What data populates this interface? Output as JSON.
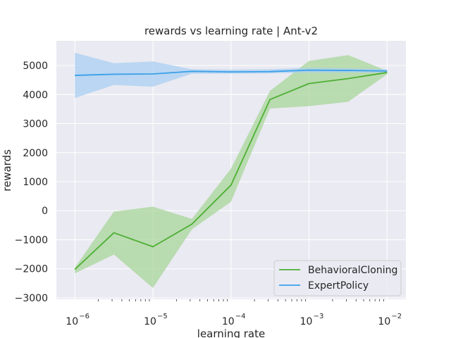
{
  "chart_data": {
    "type": "line",
    "title": "rewards vs learning rate | Ant-v2",
    "xlabel": "learning rate",
    "ylabel": "rewards",
    "xscale": "log",
    "xlim": [
      5.8e-07,
      0.0174
    ],
    "ylim": [
      -3050,
      5850
    ],
    "x": [
      1e-06,
      3.1623e-06,
      1e-05,
      3.1623e-05,
      0.0001,
      0.00031623,
      0.001,
      0.0031623,
      0.01
    ],
    "x_ticks": [
      {
        "value": 1e-06,
        "base": "10",
        "exp": "−6"
      },
      {
        "value": 1e-05,
        "base": "10",
        "exp": "−5"
      },
      {
        "value": 0.0001,
        "base": "10",
        "exp": "−4"
      },
      {
        "value": 0.001,
        "base": "10",
        "exp": "−3"
      },
      {
        "value": 0.01,
        "base": "10",
        "exp": "−2"
      }
    ],
    "y_ticks": [
      -3000,
      -2000,
      -1000,
      0,
      1000,
      2000,
      3000,
      4000,
      5000
    ],
    "y_tick_labels": [
      "−3000",
      "−2000",
      "−1000",
      "0",
      "1000",
      "2000",
      "3000",
      "4000",
      "5000"
    ],
    "grid": true,
    "legend_position": "lower-right",
    "series": [
      {
        "name": "BehavioralCloning",
        "color": "#4daf34",
        "band_color": "#a8d59a",
        "values": [
          -2020,
          -760,
          -1240,
          -460,
          880,
          3830,
          4380,
          4550,
          4760
        ],
        "upper": [
          -1960,
          -30,
          140,
          -280,
          1450,
          4130,
          5160,
          5360,
          4820
        ],
        "lower": [
          -2160,
          -1510,
          -2660,
          -640,
          310,
          3520,
          3600,
          3750,
          4700
        ]
      },
      {
        "name": "ExpertPolicy",
        "color": "#3aa0e8",
        "band_color": "#a9cff1",
        "values": [
          4660,
          4700,
          4710,
          4800,
          4780,
          4790,
          4840,
          4830,
          4810
        ],
        "upper": [
          5440,
          5080,
          5140,
          4870,
          4860,
          4870,
          4920,
          4900,
          4870
        ],
        "lower": [
          3880,
          4330,
          4270,
          4720,
          4720,
          4730,
          4760,
          4760,
          4750
        ]
      }
    ]
  }
}
